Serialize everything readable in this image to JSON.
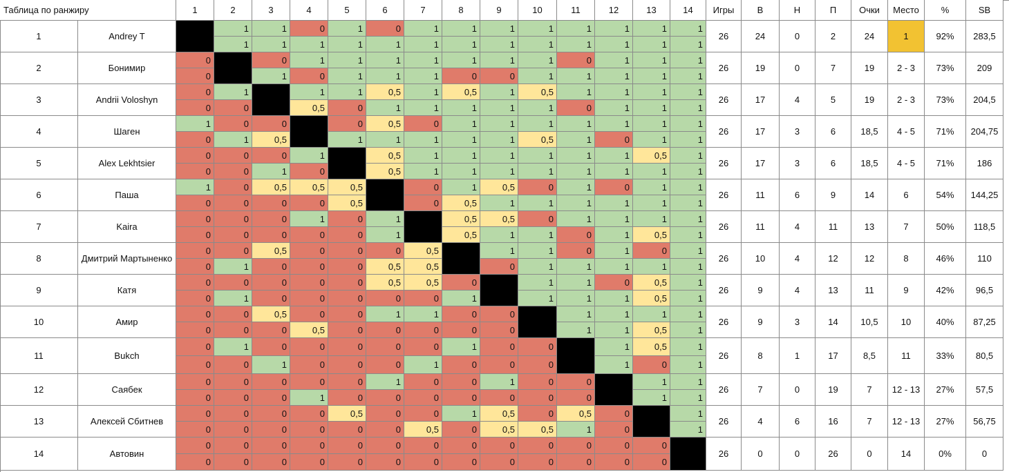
{
  "title": "Таблица по ранжиру",
  "round_headers": [
    "1",
    "2",
    "3",
    "4",
    "5",
    "6",
    "7",
    "8",
    "9",
    "10",
    "11",
    "12",
    "13",
    "14"
  ],
  "stat_headers": [
    "Игры",
    "В",
    "Н",
    "П",
    "Очки",
    "Место",
    "%",
    "SB"
  ],
  "players": [
    {
      "num": "1",
      "name": "Andrey T",
      "games": "26",
      "w": "24",
      "d": "0",
      "l": "2",
      "pts": "24",
      "place": "1",
      "pct": "92%",
      "sb": "283,5",
      "r1": [
        "",
        "1",
        "1",
        "0",
        "1",
        "0",
        "1",
        "1",
        "1",
        "1",
        "1",
        "1",
        "1",
        "1"
      ],
      "r2": [
        "",
        "1",
        "1",
        "1",
        "1",
        "1",
        "1",
        "1",
        "1",
        "1",
        "1",
        "1",
        "1",
        "1"
      ]
    },
    {
      "num": "2",
      "name": "Бонимир",
      "games": "26",
      "w": "19",
      "d": "0",
      "l": "7",
      "pts": "19",
      "place": "2 - 3",
      "pct": "73%",
      "sb": "209",
      "r1": [
        "0",
        "",
        "0",
        "1",
        "1",
        "1",
        "1",
        "1",
        "1",
        "1",
        "0",
        "1",
        "1",
        "1"
      ],
      "r2": [
        "0",
        "",
        "1",
        "0",
        "1",
        "1",
        "1",
        "0",
        "0",
        "1",
        "1",
        "1",
        "1",
        "1"
      ]
    },
    {
      "num": "3",
      "name": "Andrii Voloshyn",
      "games": "26",
      "w": "17",
      "d": "4",
      "l": "5",
      "pts": "19",
      "place": "2 - 3",
      "pct": "73%",
      "sb": "204,5",
      "r1": [
        "0",
        "1",
        "",
        "1",
        "1",
        "0,5",
        "1",
        "0,5",
        "1",
        "0,5",
        "1",
        "1",
        "1",
        "1"
      ],
      "r2": [
        "0",
        "0",
        "",
        "0,5",
        "0",
        "1",
        "1",
        "1",
        "1",
        "1",
        "0",
        "1",
        "1",
        "1"
      ]
    },
    {
      "num": "4",
      "name": "Шаген",
      "games": "26",
      "w": "17",
      "d": "3",
      "l": "6",
      "pts": "18,5",
      "place": "4 - 5",
      "pct": "71%",
      "sb": "204,75",
      "r1": [
        "1",
        "0",
        "0",
        "",
        "0",
        "0,5",
        "0",
        "1",
        "1",
        "1",
        "1",
        "1",
        "1",
        "1"
      ],
      "r2": [
        "0",
        "1",
        "0,5",
        "",
        "1",
        "1",
        "1",
        "1",
        "1",
        "0,5",
        "1",
        "0",
        "1",
        "1"
      ]
    },
    {
      "num": "5",
      "name": "Alex Lekhtsier",
      "games": "26",
      "w": "17",
      "d": "3",
      "l": "6",
      "pts": "18,5",
      "place": "4 - 5",
      "pct": "71%",
      "sb": "186",
      "r1": [
        "0",
        "0",
        "0",
        "1",
        "",
        "0,5",
        "1",
        "1",
        "1",
        "1",
        "1",
        "1",
        "0,5",
        "1"
      ],
      "r2": [
        "0",
        "0",
        "1",
        "0",
        "",
        "0,5",
        "1",
        "1",
        "1",
        "1",
        "1",
        "1",
        "1",
        "1"
      ]
    },
    {
      "num": "6",
      "name": "Паша",
      "games": "26",
      "w": "11",
      "d": "6",
      "l": "9",
      "pts": "14",
      "place": "6",
      "pct": "54%",
      "sb": "144,25",
      "r1": [
        "1",
        "0",
        "0,5",
        "0,5",
        "0,5",
        "",
        "0",
        "1",
        "0,5",
        "0",
        "1",
        "0",
        "1",
        "1"
      ],
      "r2": [
        "0",
        "0",
        "0",
        "0",
        "0,5",
        "",
        "0",
        "0,5",
        "1",
        "1",
        "1",
        "1",
        "1",
        "1"
      ]
    },
    {
      "num": "7",
      "name": "Kaira",
      "games": "26",
      "w": "11",
      "d": "4",
      "l": "11",
      "pts": "13",
      "place": "7",
      "pct": "50%",
      "sb": "118,5",
      "r1": [
        "0",
        "0",
        "0",
        "1",
        "0",
        "1",
        "",
        "0,5",
        "0,5",
        "0",
        "1",
        "1",
        "1",
        "1"
      ],
      "r2": [
        "0",
        "0",
        "0",
        "0",
        "0",
        "1",
        "",
        "0,5",
        "1",
        "1",
        "0",
        "1",
        "0,5",
        "1"
      ]
    },
    {
      "num": "8",
      "name": "Дмитрий Мартыненко",
      "games": "26",
      "w": "10",
      "d": "4",
      "l": "12",
      "pts": "12",
      "place": "8",
      "pct": "46%",
      "sb": "110",
      "r1": [
        "0",
        "0",
        "0,5",
        "0",
        "0",
        "0",
        "0,5",
        "",
        "1",
        "1",
        "0",
        "1",
        "0",
        "1"
      ],
      "r2": [
        "0",
        "1",
        "0",
        "0",
        "0",
        "0,5",
        "0,5",
        "",
        "0",
        "1",
        "1",
        "1",
        "1",
        "1"
      ]
    },
    {
      "num": "9",
      "name": "Катя",
      "games": "26",
      "w": "9",
      "d": "4",
      "l": "13",
      "pts": "11",
      "place": "9",
      "pct": "42%",
      "sb": "96,5",
      "r1": [
        "0",
        "0",
        "0",
        "0",
        "0",
        "0,5",
        "0,5",
        "0",
        "",
        "1",
        "1",
        "0",
        "0,5",
        "1"
      ],
      "r2": [
        "0",
        "1",
        "0",
        "0",
        "0",
        "0",
        "0",
        "1",
        "",
        "1",
        "1",
        "1",
        "0,5",
        "1"
      ]
    },
    {
      "num": "10",
      "name": "Амир",
      "games": "26",
      "w": "9",
      "d": "3",
      "l": "14",
      "pts": "10,5",
      "place": "10",
      "pct": "40%",
      "sb": "87,25",
      "r1": [
        "0",
        "0",
        "0,5",
        "0",
        "0",
        "1",
        "1",
        "0",
        "0",
        "",
        "1",
        "1",
        "1",
        "1"
      ],
      "r2": [
        "0",
        "0",
        "0",
        "0,5",
        "0",
        "0",
        "0",
        "0",
        "0",
        "",
        "1",
        "1",
        "0,5",
        "1"
      ]
    },
    {
      "num": "11",
      "name": "Bukch",
      "games": "26",
      "w": "8",
      "d": "1",
      "l": "17",
      "pts": "8,5",
      "place": "11",
      "pct": "33%",
      "sb": "80,5",
      "r1": [
        "0",
        "1",
        "0",
        "0",
        "0",
        "0",
        "0",
        "1",
        "0",
        "0",
        "",
        "1",
        "0,5",
        "1"
      ],
      "r2": [
        "0",
        "0",
        "1",
        "0",
        "0",
        "0",
        "1",
        "0",
        "0",
        "0",
        "",
        "1",
        "0",
        "1"
      ]
    },
    {
      "num": "12",
      "name": "Саябек",
      "games": "26",
      "w": "7",
      "d": "0",
      "l": "19",
      "pts": "7",
      "place": "12 - 13",
      "pct": "27%",
      "sb": "57,5",
      "r1": [
        "0",
        "0",
        "0",
        "0",
        "0",
        "1",
        "0",
        "0",
        "1",
        "0",
        "0",
        "",
        "1",
        "1"
      ],
      "r2": [
        "0",
        "0",
        "0",
        "1",
        "0",
        "0",
        "0",
        "0",
        "0",
        "0",
        "0",
        "",
        "1",
        "1"
      ]
    },
    {
      "num": "13",
      "name": "Алексей Сбитнев",
      "games": "26",
      "w": "4",
      "d": "6",
      "l": "16",
      "pts": "7",
      "place": "12 - 13",
      "pct": "27%",
      "sb": "56,75",
      "r1": [
        "0",
        "0",
        "0",
        "0",
        "0,5",
        "0",
        "0",
        "1",
        "0,5",
        "0",
        "0,5",
        "0",
        "",
        "1"
      ],
      "r2": [
        "0",
        "0",
        "0",
        "0",
        "0",
        "0",
        "0,5",
        "0",
        "0,5",
        "0,5",
        "1",
        "0",
        "",
        "1"
      ]
    },
    {
      "num": "14",
      "name": "Автовин",
      "games": "26",
      "w": "0",
      "d": "0",
      "l": "26",
      "pts": "0",
      "place": "14",
      "pct": "0%",
      "sb": "0",
      "r1": [
        "0",
        "0",
        "0",
        "0",
        "0",
        "0",
        "0",
        "0",
        "0",
        "0",
        "0",
        "0",
        "0",
        ""
      ],
      "r2": [
        "0",
        "0",
        "0",
        "0",
        "0",
        "0",
        "0",
        "0",
        "0",
        "0",
        "0",
        "0",
        "0",
        ""
      ]
    }
  ],
  "colors": {
    "win": "#b7d9a8",
    "loss": "#e07b6a",
    "draw": "#ffe69a",
    "diagonal": "#000000",
    "first_place": "#f2c232"
  }
}
